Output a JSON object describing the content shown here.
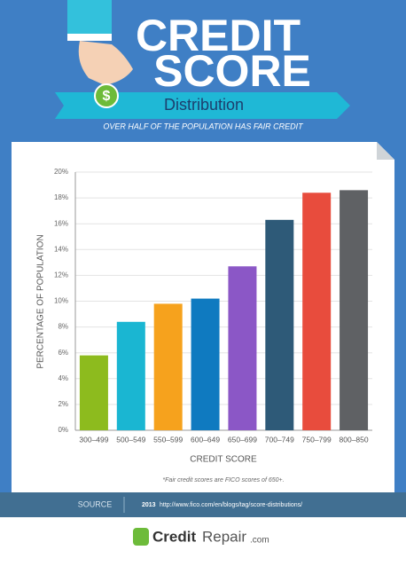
{
  "header": {
    "line1": "CREDIT",
    "line2": "SCORE",
    "coin": "$",
    "ribbon": "Distribution",
    "subtitle": "OVER HALF OF THE POPULATION HAS FAIR CREDIT"
  },
  "chart_data": {
    "type": "bar",
    "x_label": "CREDIT SCORE",
    "y_label": "PERCENTAGE OF POPULATION",
    "categories": [
      "300–499",
      "500–549",
      "550–599",
      "600–649",
      "650–699",
      "700–749",
      "750–799",
      "800–850"
    ],
    "values": [
      5.8,
      8.4,
      9.8,
      10.2,
      12.7,
      16.3,
      18.4,
      18.6
    ],
    "colors": [
      "#8dbb1e",
      "#1ab6d2",
      "#f6a21d",
      "#0f7ac0",
      "#8b57c6",
      "#2e5a78",
      "#e84c3d",
      "#5f6164"
    ],
    "ylim": [
      0,
      20
    ],
    "yticks": [
      {
        "value": 0,
        "label": "0%"
      },
      {
        "value": 2,
        "label": "2%"
      },
      {
        "value": 4,
        "label": "4%"
      },
      {
        "value": 6,
        "label": "6%"
      },
      {
        "value": 8,
        "label": "8%"
      },
      {
        "value": 10,
        "label": "10%"
      },
      {
        "value": 12,
        "label": "12%"
      },
      {
        "value": 14,
        "label": "14%"
      },
      {
        "value": 16,
        "label": "16%"
      },
      {
        "value": 18,
        "label": "18%"
      },
      {
        "value": 20,
        "label": "20%"
      }
    ],
    "grid": true,
    "footnote": "*Fair credit scores are FICO scores of 650+."
  },
  "source": {
    "label": "SOURCE",
    "year": "2013",
    "url": "http://www.fico.com/en/blogs/tag/score-distributions/"
  },
  "footer": {
    "logo_main": "Credit",
    "logo_second": "Repair",
    "logo_suffix": ".com"
  }
}
